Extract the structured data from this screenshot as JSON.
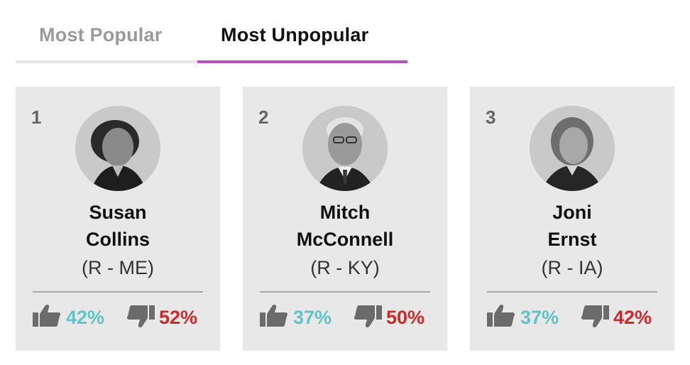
{
  "tabs": [
    {
      "label": "Most Popular",
      "active": false
    },
    {
      "label": "Most Unpopular",
      "active": true
    }
  ],
  "colors": {
    "active_tab_underline": "#b552c8",
    "approve": "#5fc4c9",
    "disapprove": "#cc2a2a",
    "card_background": "#e8e8e8"
  },
  "senators": [
    {
      "rank": "1",
      "name_line1": "Susan",
      "name_line2": "Collins",
      "party": "(R - ME)",
      "approve_icon": "thumbs-up-icon",
      "approve": "42%",
      "disapprove_icon": "thumbs-down-icon",
      "disapprove": "52%"
    },
    {
      "rank": "2",
      "name_line1": "Mitch",
      "name_line2": "McConnell",
      "party": "(R - KY)",
      "approve_icon": "thumbs-up-icon",
      "approve": "37%",
      "disapprove_icon": "thumbs-down-icon",
      "disapprove": "50%"
    },
    {
      "rank": "3",
      "name_line1": "Joni",
      "name_line2": "Ernst",
      "party": "(R - IA)",
      "approve_icon": "thumbs-up-icon",
      "approve": "37%",
      "disapprove_icon": "thumbs-down-icon",
      "disapprove": "42%"
    }
  ]
}
